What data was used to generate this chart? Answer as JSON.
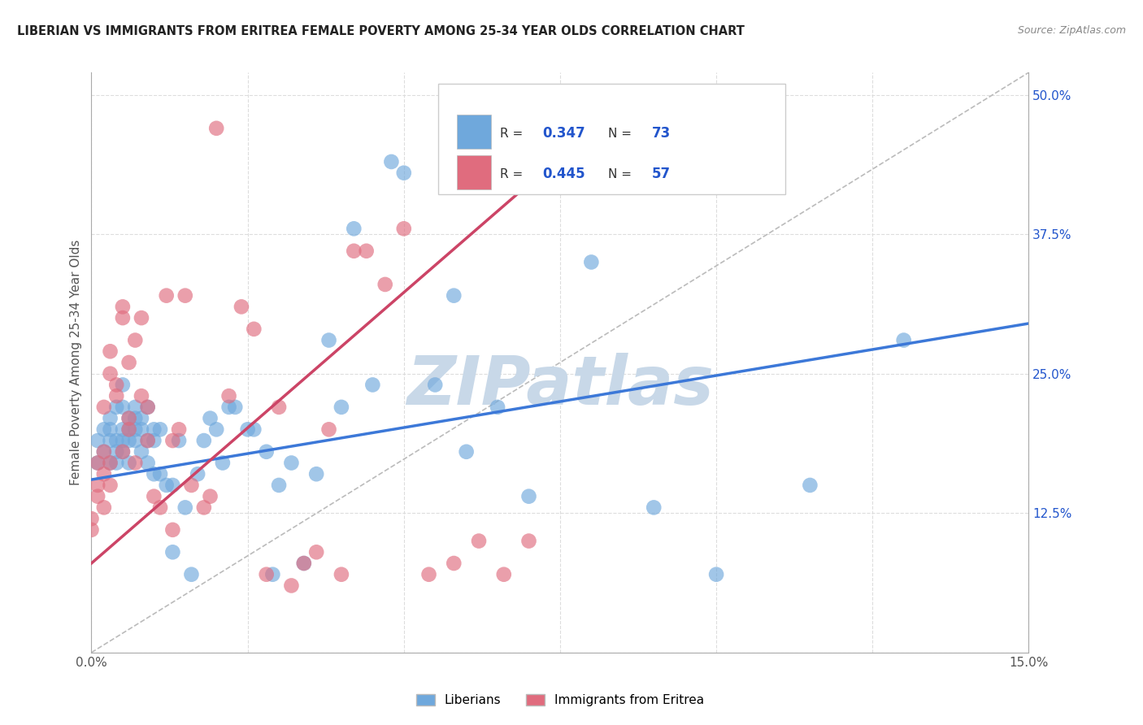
{
  "title": "LIBERIAN VS IMMIGRANTS FROM ERITREA FEMALE POVERTY AMONG 25-34 YEAR OLDS CORRELATION CHART",
  "source": "Source: ZipAtlas.com",
  "ylabel": "Female Poverty Among 25-34 Year Olds",
  "xlim": [
    0.0,
    0.15
  ],
  "ylim": [
    0.0,
    0.52
  ],
  "xticks": [
    0.0,
    0.025,
    0.05,
    0.075,
    0.1,
    0.125,
    0.15
  ],
  "xticklabels": [
    "0.0%",
    "",
    "",
    "",
    "",
    "",
    "15.0%"
  ],
  "yticks_right": [
    0.0,
    0.125,
    0.25,
    0.375,
    0.5
  ],
  "yticklabels_right": [
    "",
    "12.5%",
    "25.0%",
    "37.5%",
    "50.0%"
  ],
  "liberian_R": 0.347,
  "liberian_N": 73,
  "eritrea_R": 0.445,
  "eritrea_N": 57,
  "liberian_color": "#6fa8dc",
  "eritrea_color": "#e06c7e",
  "liberian_line_color": "#3c78d8",
  "eritrea_line_color": "#cc4466",
  "diagonal_color": "#bbbbbb",
  "background_color": "#ffffff",
  "grid_color": "#dddddd",
  "watermark": "ZIPatlas",
  "watermark_color": "#c8d8e8",
  "legend_color": "#2255cc",
  "liberian_x": [
    0.001,
    0.001,
    0.002,
    0.002,
    0.003,
    0.003,
    0.003,
    0.003,
    0.004,
    0.004,
    0.004,
    0.004,
    0.005,
    0.005,
    0.005,
    0.005,
    0.005,
    0.006,
    0.006,
    0.006,
    0.006,
    0.007,
    0.007,
    0.007,
    0.007,
    0.008,
    0.008,
    0.008,
    0.009,
    0.009,
    0.009,
    0.01,
    0.01,
    0.01,
    0.011,
    0.011,
    0.012,
    0.013,
    0.013,
    0.014,
    0.015,
    0.016,
    0.017,
    0.018,
    0.019,
    0.02,
    0.021,
    0.022,
    0.023,
    0.025,
    0.026,
    0.028,
    0.029,
    0.03,
    0.032,
    0.034,
    0.036,
    0.038,
    0.04,
    0.042,
    0.045,
    0.048,
    0.05,
    0.055,
    0.058,
    0.06,
    0.065,
    0.07,
    0.08,
    0.09,
    0.1,
    0.115,
    0.13
  ],
  "liberian_y": [
    0.19,
    0.17,
    0.2,
    0.18,
    0.19,
    0.2,
    0.21,
    0.17,
    0.18,
    0.19,
    0.22,
    0.17,
    0.2,
    0.19,
    0.22,
    0.24,
    0.18,
    0.19,
    0.21,
    0.2,
    0.17,
    0.21,
    0.2,
    0.22,
    0.19,
    0.21,
    0.2,
    0.18,
    0.22,
    0.19,
    0.17,
    0.2,
    0.19,
    0.16,
    0.2,
    0.16,
    0.15,
    0.15,
    0.09,
    0.19,
    0.13,
    0.07,
    0.16,
    0.19,
    0.21,
    0.2,
    0.17,
    0.22,
    0.22,
    0.2,
    0.2,
    0.18,
    0.07,
    0.15,
    0.17,
    0.08,
    0.16,
    0.28,
    0.22,
    0.38,
    0.24,
    0.44,
    0.43,
    0.24,
    0.32,
    0.18,
    0.22,
    0.14,
    0.35,
    0.13,
    0.07,
    0.15,
    0.28
  ],
  "eritrea_x": [
    0.0,
    0.0,
    0.001,
    0.001,
    0.001,
    0.002,
    0.002,
    0.002,
    0.002,
    0.003,
    0.003,
    0.003,
    0.003,
    0.004,
    0.004,
    0.005,
    0.005,
    0.005,
    0.006,
    0.006,
    0.006,
    0.007,
    0.007,
    0.008,
    0.008,
    0.009,
    0.009,
    0.01,
    0.011,
    0.012,
    0.013,
    0.013,
    0.014,
    0.015,
    0.016,
    0.018,
    0.019,
    0.02,
    0.022,
    0.024,
    0.026,
    0.028,
    0.03,
    0.032,
    0.034,
    0.036,
    0.038,
    0.04,
    0.042,
    0.044,
    0.047,
    0.05,
    0.054,
    0.058,
    0.062,
    0.066,
    0.07
  ],
  "eritrea_y": [
    0.12,
    0.11,
    0.14,
    0.17,
    0.15,
    0.13,
    0.16,
    0.18,
    0.22,
    0.15,
    0.25,
    0.27,
    0.17,
    0.24,
    0.23,
    0.31,
    0.3,
    0.18,
    0.21,
    0.2,
    0.26,
    0.28,
    0.17,
    0.23,
    0.3,
    0.19,
    0.22,
    0.14,
    0.13,
    0.32,
    0.11,
    0.19,
    0.2,
    0.32,
    0.15,
    0.13,
    0.14,
    0.47,
    0.23,
    0.31,
    0.29,
    0.07,
    0.22,
    0.06,
    0.08,
    0.09,
    0.2,
    0.07,
    0.36,
    0.36,
    0.33,
    0.38,
    0.07,
    0.08,
    0.1,
    0.07,
    0.1
  ]
}
